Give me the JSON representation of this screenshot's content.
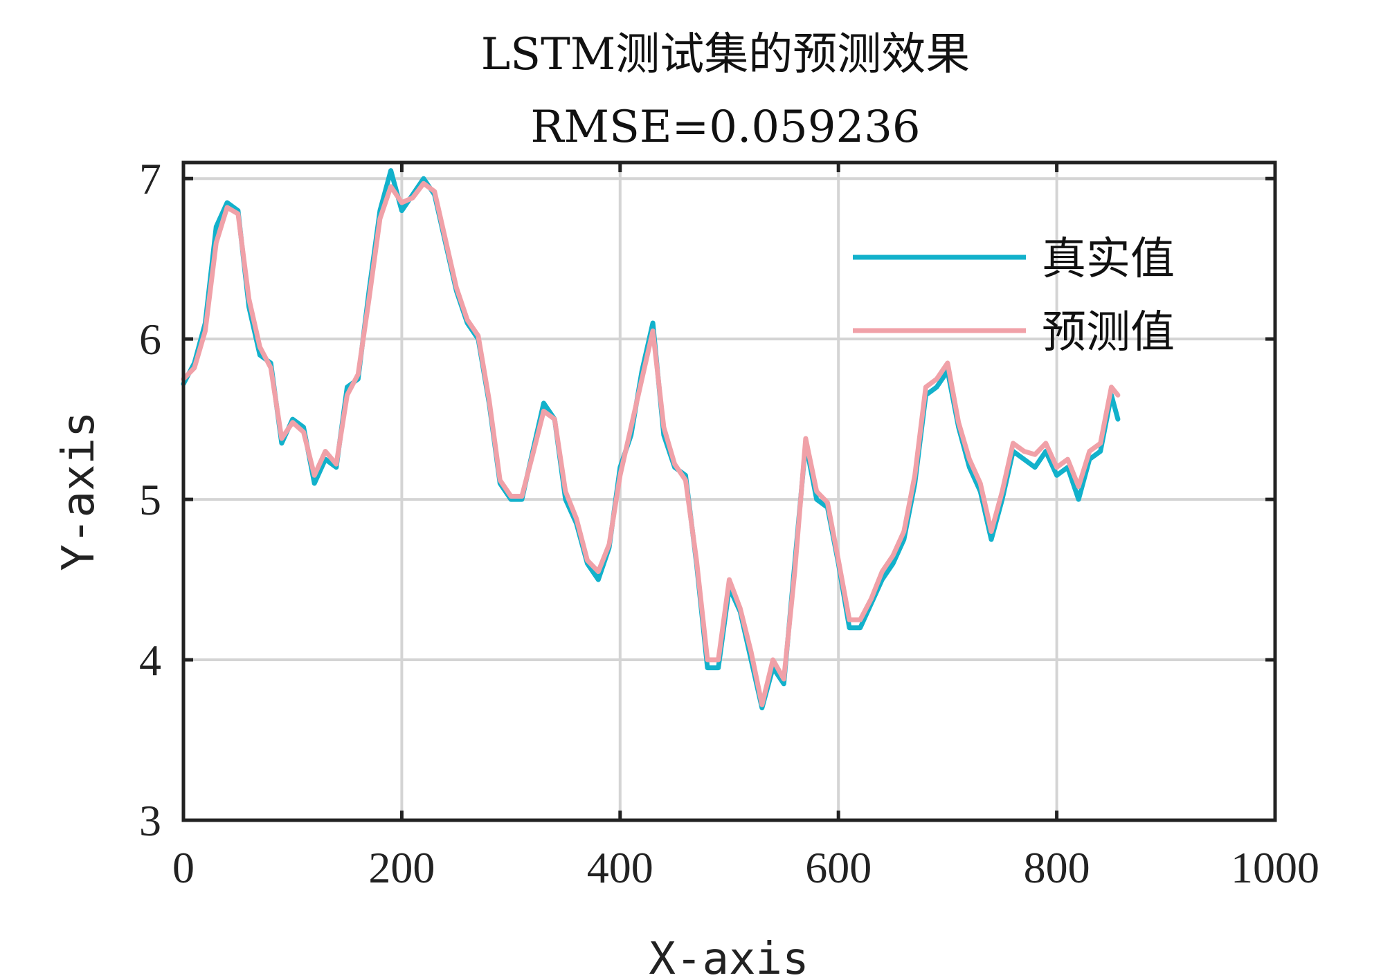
{
  "chart_data": {
    "type": "line",
    "title": "LSTM测试集的预测效果",
    "subtitle": "RMSE=0.059236",
    "xlabel": "X-axis",
    "ylabel": "Y-axis",
    "xlim": [
      0,
      1000
    ],
    "ylim": [
      3,
      7.1
    ],
    "xticks": [
      0,
      200,
      400,
      600,
      800,
      1000
    ],
    "yticks": [
      3,
      4,
      5,
      6,
      7
    ],
    "xtick_labels": [
      "0",
      "200",
      "400",
      "600",
      "800",
      "1000"
    ],
    "ytick_labels": [
      "3",
      "4",
      "5",
      "6",
      "7"
    ],
    "grid": true,
    "legend_position": "top-right",
    "series": [
      {
        "name": "真实值",
        "color": "#12b1cb",
        "x": [
          0,
          10,
          20,
          30,
          40,
          50,
          60,
          70,
          80,
          90,
          100,
          110,
          120,
          130,
          140,
          150,
          160,
          170,
          180,
          190,
          200,
          210,
          220,
          230,
          240,
          250,
          260,
          270,
          280,
          290,
          300,
          310,
          320,
          330,
          340,
          350,
          360,
          370,
          380,
          390,
          400,
          410,
          420,
          430,
          440,
          450,
          460,
          470,
          480,
          490,
          500,
          510,
          520,
          530,
          540,
          550,
          560,
          570,
          580,
          590,
          600,
          610,
          620,
          630,
          640,
          650,
          660,
          670,
          680,
          690,
          700,
          710,
          720,
          730,
          740,
          750,
          760,
          770,
          780,
          790,
          800,
          810,
          820,
          830,
          840,
          850,
          856
        ],
        "values": [
          5.72,
          5.85,
          6.1,
          6.7,
          6.85,
          6.8,
          6.2,
          5.9,
          5.85,
          5.35,
          5.5,
          5.45,
          5.1,
          5.25,
          5.2,
          5.7,
          5.75,
          6.3,
          6.8,
          7.05,
          6.8,
          6.9,
          7.0,
          6.9,
          6.6,
          6.3,
          6.1,
          6.0,
          5.6,
          5.1,
          5.0,
          5.0,
          5.3,
          5.6,
          5.5,
          5.0,
          4.85,
          4.6,
          4.5,
          4.7,
          5.2,
          5.4,
          5.8,
          6.1,
          5.4,
          5.2,
          5.15,
          4.6,
          3.95,
          3.95,
          4.45,
          4.3,
          4.0,
          3.7,
          3.95,
          3.85,
          4.6,
          5.35,
          5.0,
          4.95,
          4.6,
          4.2,
          4.2,
          4.35,
          4.5,
          4.6,
          4.75,
          5.1,
          5.65,
          5.7,
          5.8,
          5.45,
          5.2,
          5.05,
          4.75,
          5.0,
          5.3,
          5.25,
          5.2,
          5.3,
          5.15,
          5.2,
          5.0,
          5.25,
          5.3,
          5.65,
          5.5
        ]
      },
      {
        "name": "预测值",
        "color": "#f0a1a8",
        "x": [
          0,
          10,
          20,
          30,
          40,
          50,
          60,
          70,
          80,
          90,
          100,
          110,
          120,
          130,
          140,
          150,
          160,
          170,
          180,
          190,
          200,
          210,
          220,
          230,
          240,
          250,
          260,
          270,
          280,
          290,
          300,
          310,
          320,
          330,
          340,
          350,
          360,
          370,
          380,
          390,
          400,
          410,
          420,
          430,
          440,
          450,
          460,
          470,
          480,
          490,
          500,
          510,
          520,
          530,
          540,
          550,
          560,
          570,
          580,
          590,
          600,
          610,
          620,
          630,
          640,
          650,
          660,
          670,
          680,
          690,
          700,
          710,
          720,
          730,
          740,
          750,
          760,
          770,
          780,
          790,
          800,
          810,
          820,
          830,
          840,
          850,
          856
        ],
        "values": [
          5.75,
          5.82,
          6.05,
          6.6,
          6.82,
          6.78,
          6.25,
          5.95,
          5.82,
          5.38,
          5.48,
          5.42,
          5.15,
          5.3,
          5.22,
          5.65,
          5.78,
          6.25,
          6.75,
          6.95,
          6.85,
          6.88,
          6.97,
          6.92,
          6.62,
          6.32,
          6.12,
          6.02,
          5.62,
          5.12,
          5.02,
          5.02,
          5.28,
          5.55,
          5.5,
          5.05,
          4.88,
          4.62,
          4.55,
          4.72,
          5.15,
          5.45,
          5.75,
          6.05,
          5.45,
          5.22,
          5.12,
          4.62,
          4.0,
          4.0,
          4.5,
          4.32,
          4.05,
          3.72,
          4.0,
          3.88,
          4.55,
          5.38,
          5.05,
          4.98,
          4.62,
          4.25,
          4.25,
          4.38,
          4.55,
          4.65,
          4.8,
          5.15,
          5.7,
          5.75,
          5.85,
          5.48,
          5.25,
          5.1,
          4.8,
          5.05,
          5.35,
          5.3,
          5.28,
          5.35,
          5.2,
          5.25,
          5.08,
          5.3,
          5.35,
          5.7,
          5.65
        ]
      }
    ]
  }
}
